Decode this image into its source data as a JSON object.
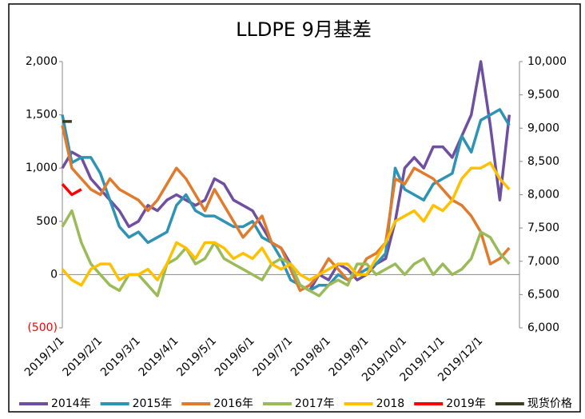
{
  "chart_data": {
    "type": "line",
    "title": "LLDPE  9月基差",
    "categories": [
      "2019/1/1",
      null,
      null,
      null,
      "2019/2/1",
      null,
      null,
      null,
      "2019/3/1",
      null,
      null,
      null,
      "2019/4/1",
      null,
      null,
      null,
      "2019/5/1",
      null,
      null,
      null,
      "2019/6/1",
      null,
      null,
      null,
      "2019/7/1",
      null,
      null,
      null,
      "2019/8/1",
      null,
      null,
      null,
      "2019/9/1",
      null,
      null,
      null,
      "2019/10/1",
      null,
      null,
      null,
      "2019/11/1",
      null,
      null,
      null,
      "2019/12/1",
      null,
      null,
      null
    ],
    "ylim": [
      -500,
      2000
    ],
    "yticks": [
      {
        "value": 2000,
        "label": "2,000"
      },
      {
        "value": 1500,
        "label": "1,500"
      },
      {
        "value": 1000,
        "label": "1,000"
      },
      500,
      0,
      {
        "value": -500,
        "label": "(500)"
      }
    ],
    "y2lim": [
      6000,
      10000
    ],
    "y2ticks": [
      {
        "value": 10000,
        "label": "10,000"
      },
      {
        "value": 9500,
        "label": "9,500"
      },
      {
        "value": 9000,
        "label": "9,000"
      },
      {
        "value": 8500,
        "label": "8,500"
      },
      {
        "value": 8000,
        "label": "8,000"
      },
      {
        "value": 7500,
        "label": "7,500"
      },
      {
        "value": 7000,
        "label": "7,000"
      },
      {
        "value": 6500,
        "label": "6,500"
      },
      {
        "value": 6000,
        "label": "6,000"
      }
    ],
    "legend": "bottom",
    "series": [
      {
        "name": "2014年",
        "color": "#6f4f9f",
        "values": [
          1000,
          1150,
          1100,
          900,
          800,
          700,
          600,
          450,
          500,
          650,
          600,
          700,
          750,
          700,
          650,
          700,
          900,
          850,
          700,
          650,
          600,
          450,
          300,
          250,
          100,
          -100,
          -150,
          0,
          -50,
          100,
          50,
          -50,
          0,
          100,
          150,
          500,
          1000,
          1100,
          1000,
          1200,
          1200,
          1100,
          1300,
          1500,
          2000,
          1400,
          700,
          1500
        ]
      },
      {
        "name": "2015年",
        "color": "#2f93b3",
        "values": [
          1500,
          1050,
          1100,
          1100,
          950,
          700,
          450,
          350,
          400,
          300,
          350,
          400,
          650,
          750,
          600,
          550,
          550,
          500,
          450,
          450,
          500,
          350,
          300,
          150,
          -50,
          -100,
          -150,
          -100,
          -100,
          0,
          -50,
          0,
          50,
          100,
          200,
          1000,
          800,
          750,
          700,
          850,
          900,
          950,
          1300,
          1150,
          1450,
          1500,
          1550,
          1400
        ]
      },
      {
        "name": "2016年",
        "color": "#e07b2e",
        "values": [
          1400,
          1000,
          900,
          800,
          750,
          900,
          800,
          750,
          700,
          600,
          700,
          850,
          1000,
          900,
          750,
          600,
          800,
          650,
          500,
          350,
          450,
          550,
          300,
          250,
          50,
          -150,
          -100,
          0,
          150,
          50,
          -50,
          0,
          150,
          200,
          300,
          900,
          850,
          1000,
          950,
          900,
          800,
          700,
          650,
          550,
          400,
          100,
          150,
          250
        ]
      },
      {
        "name": "2017年",
        "color": "#9bbb59",
        "values": [
          450,
          600,
          300,
          100,
          0,
          -100,
          -150,
          0,
          0,
          -100,
          -200,
          100,
          150,
          250,
          100,
          150,
          300,
          150,
          100,
          50,
          0,
          -50,
          100,
          150,
          100,
          -100,
          -150,
          -200,
          -100,
          -50,
          -100,
          100,
          100,
          0,
          50,
          100,
          0,
          100,
          150,
          0,
          100,
          0,
          50,
          150,
          400,
          350,
          200,
          100
        ]
      },
      {
        "name": "2018",
        "color": "#ffc000",
        "values": [
          50,
          -50,
          -100,
          50,
          100,
          100,
          -50,
          0,
          0,
          50,
          -50,
          100,
          300,
          250,
          150,
          300,
          300,
          250,
          150,
          200,
          150,
          250,
          100,
          50,
          100,
          0,
          -50,
          0,
          50,
          100,
          100,
          0,
          0,
          150,
          300,
          500,
          550,
          600,
          500,
          650,
          600,
          700,
          900,
          1000,
          1000,
          1050,
          900,
          800
        ]
      },
      {
        "name": "2019年",
        "color": "#ff0000",
        "values": [
          850,
          750,
          800,
          null,
          null,
          null,
          null,
          null,
          null,
          null,
          null,
          null,
          null,
          null,
          null,
          null,
          null,
          null,
          null,
          null,
          null,
          null,
          null,
          null,
          null,
          null,
          null,
          null,
          null,
          null,
          null,
          null,
          null,
          null,
          null,
          null,
          null,
          null,
          null,
          null,
          null,
          null,
          null,
          null,
          null,
          null,
          null,
          null
        ]
      },
      {
        "name": "现货价格",
        "color": "#3b3b1f",
        "axis": "y2",
        "values": [
          9100,
          9100,
          null,
          null,
          null,
          null,
          null,
          null,
          null,
          null,
          null,
          null,
          null,
          null,
          null,
          null,
          null,
          null,
          null,
          null,
          null,
          null,
          null,
          null,
          null,
          null,
          null,
          null,
          null,
          null,
          null,
          null,
          null,
          null,
          null,
          null,
          null,
          null,
          null,
          null,
          null,
          null,
          null,
          null,
          null,
          null,
          null,
          null
        ]
      }
    ]
  }
}
